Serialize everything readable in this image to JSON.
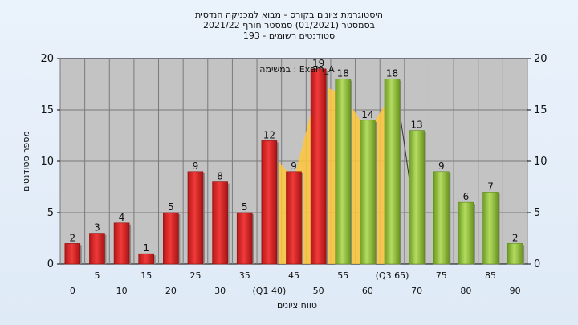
{
  "chart_data": {
    "type": "bar",
    "title_lines": [
      "היסטוגרמת ציונים בקורס - מבוא למכניקה הנדסית",
      "בסמסטר  (01/2021)  סמסטר חורף 2021/22",
      "סטודנטים רשומים - 193"
    ],
    "xlabel": "טווח ציונים",
    "ylabel": "מספר סטודנטים",
    "ylim": [
      0,
      20
    ],
    "yticks": [
      0,
      5,
      10,
      15,
      20
    ],
    "annotation": "במשימה : Exam_A",
    "categories": [
      "0",
      "5",
      "10",
      "15",
      "20",
      "25",
      "30",
      "35",
      "(Q1 40)",
      "45",
      "50",
      "55",
      "60",
      "(Q3 65)",
      "70",
      "75",
      "80",
      "85",
      "90"
    ],
    "values": [
      2,
      3,
      4,
      1,
      5,
      9,
      8,
      5,
      12,
      9,
      19,
      18,
      14,
      18,
      13,
      9,
      6,
      7,
      2
    ],
    "bar_colors": [
      "#dd2020",
      "#dd2020",
      "#dd2020",
      "#dd2020",
      "#dd2020",
      "#dd2020",
      "#dd2020",
      "#dd2020",
      "#dd2020",
      "#dd2020",
      "#dd2020",
      "#8fc23a",
      "#8fc23a",
      "#8fc23a",
      "#8fc23a",
      "#8fc23a",
      "#8fc23a",
      "#8fc23a",
      "#8fc23a"
    ],
    "iqr_band_color": "#ffc83c",
    "grid": true
  }
}
